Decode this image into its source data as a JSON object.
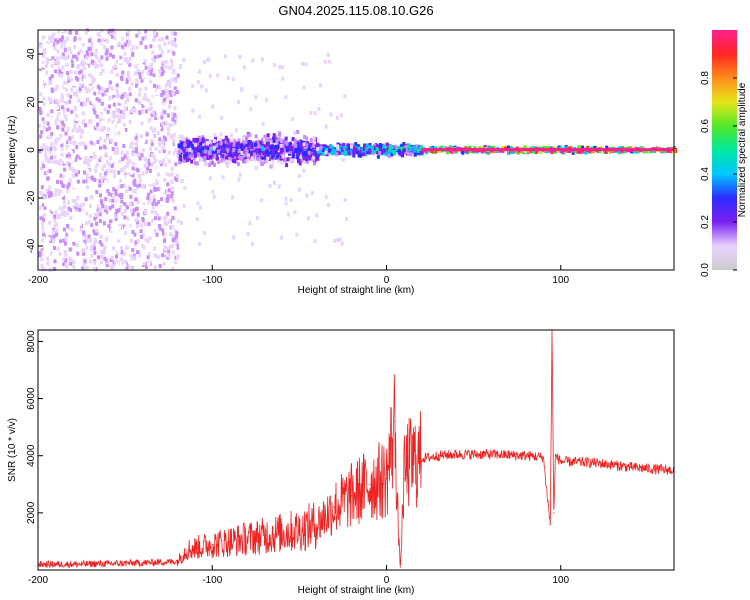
{
  "title": "GN04.2025.115.08.10.G26",
  "colors": {
    "snr_line": "#ee2222",
    "colormap": [
      "#ffffff",
      "#e9d3ff",
      "#c98cff",
      "#7a21f0",
      "#2b2bff",
      "#00c8ff",
      "#00e8a0",
      "#52e826",
      "#e6e61a",
      "#ff8c1a",
      "#ff2424",
      "#ff1f8f"
    ]
  },
  "chart_data": [
    {
      "type": "heatmap",
      "title": "",
      "xlabel": "Height of straight line (km)",
      "ylabel": "Frequency (Hz)",
      "xlim": [
        -200,
        165
      ],
      "ylim": [
        -50,
        50
      ],
      "x_ticks": [
        "-200",
        "-100",
        "0",
        "100"
      ],
      "y_ticks": [
        "-40",
        "-20",
        "0",
        "20",
        "40"
      ],
      "colorbar": {
        "label": "Normalized spectral amplitude",
        "range": [
          0,
          1
        ],
        "ticks": [
          "0.0",
          "0.2",
          "0.4",
          "0.6",
          "0.8"
        ]
      },
      "regions": [
        {
          "x": [
            -200,
            -120
          ],
          "freq_spread_hz": 50,
          "amplitude": 0.1,
          "description_level": "noise"
        },
        {
          "x": [
            -120,
            -40
          ],
          "freq_spread_hz": 8,
          "amplitude": 0.35
        },
        {
          "x": [
            -40,
            20
          ],
          "freq_spread_hz": 3,
          "amplitude": 0.5
        },
        {
          "x": [
            20,
            165
          ],
          "freq_spread_hz": 1.5,
          "amplitude": 0.95
        }
      ]
    },
    {
      "type": "line",
      "title": "",
      "xlabel": "Height of straight line (km)",
      "ylabel": "SNR (10 * v/v)",
      "xlim": [
        -200,
        165
      ],
      "ylim": [
        0,
        8400
      ],
      "x_ticks": [
        "-200",
        "-100",
        "0",
        "100"
      ],
      "y_ticks": [
        "2000",
        "4000",
        "6000",
        "8000"
      ],
      "series": [
        {
          "x": [
            -200,
            -180,
            -160,
            -140,
            -120,
            -115,
            -100,
            -90,
            -80,
            -70,
            -60,
            -50,
            -40,
            -30,
            -20,
            -10,
            0,
            5,
            7,
            8,
            10,
            12,
            20,
            30,
            40,
            60,
            80,
            90,
            94,
            95,
            96,
            97,
            100,
            120,
            140,
            160,
            165
          ],
          "values": [
            200,
            200,
            220,
            250,
            300,
            700,
            900,
            1000,
            1100,
            1200,
            1300,
            1400,
            1600,
            2200,
            2600,
            3000,
            3200,
            5200,
            1000,
            100,
            3200,
            3700,
            3900,
            4000,
            4050,
            4050,
            4000,
            3950,
            1600,
            8400,
            2000,
            4000,
            3800,
            3750,
            3600,
            3500,
            3500
          ]
        }
      ]
    }
  ]
}
